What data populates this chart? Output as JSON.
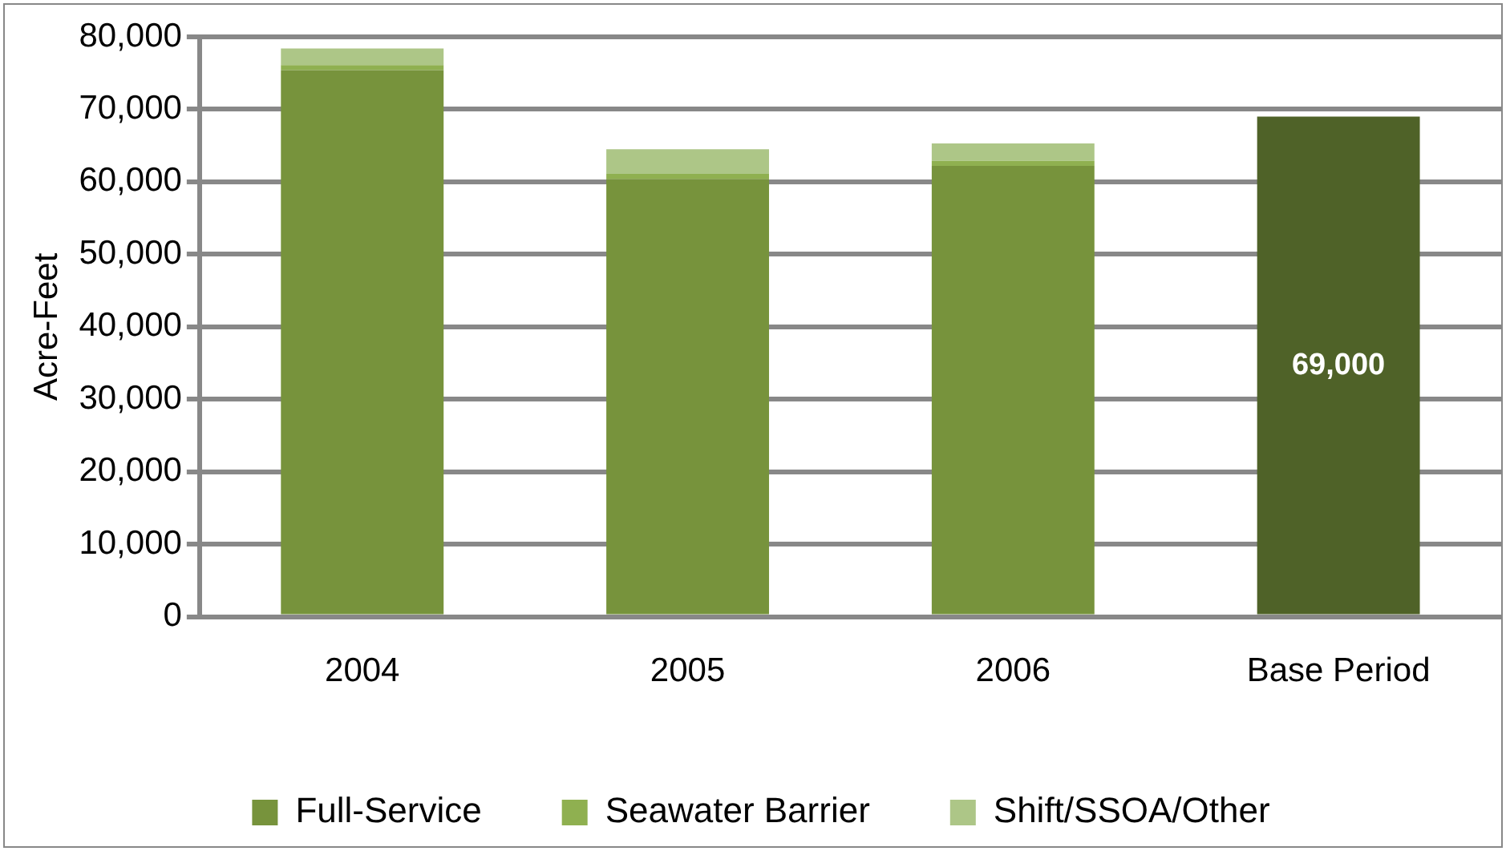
{
  "chart_data": {
    "type": "bar",
    "ylabel": "Acre-Feet",
    "categories": [
      "2004",
      "2005",
      "2006",
      "Base Period"
    ],
    "stacked": true,
    "series": [
      {
        "name": "Full-Service",
        "color": "#77933c",
        "colors": [
          "#77933c",
          "#77933c",
          "#77933c",
          "#4f6228"
        ],
        "values": [
          75400,
          60400,
          62200,
          69000
        ],
        "value_labels": [
          null,
          null,
          null,
          "69,000"
        ]
      },
      {
        "name": "Seawater Barrier",
        "color": "#8fb050",
        "values": [
          700,
          700,
          700,
          null
        ]
      },
      {
        "name": "Shift/SSOA/Other",
        "color": "#adc687",
        "values": [
          2300,
          3400,
          2400,
          null
        ]
      }
    ],
    "ylim": [
      0,
      80000
    ],
    "yticks": [
      0,
      {
        "value": 10000,
        "label": "10,000"
      },
      {
        "value": 20000,
        "label": "20,000"
      },
      {
        "value": 30000,
        "label": "30,000"
      },
      {
        "value": 40000,
        "label": "40,000"
      },
      {
        "value": 50000,
        "label": "50,000"
      },
      {
        "value": 60000,
        "label": "60,000"
      },
      {
        "value": 70000,
        "label": "70,000"
      },
      {
        "value": 80000,
        "label": "80,000"
      }
    ],
    "grid": "y",
    "legend": "bottom"
  }
}
